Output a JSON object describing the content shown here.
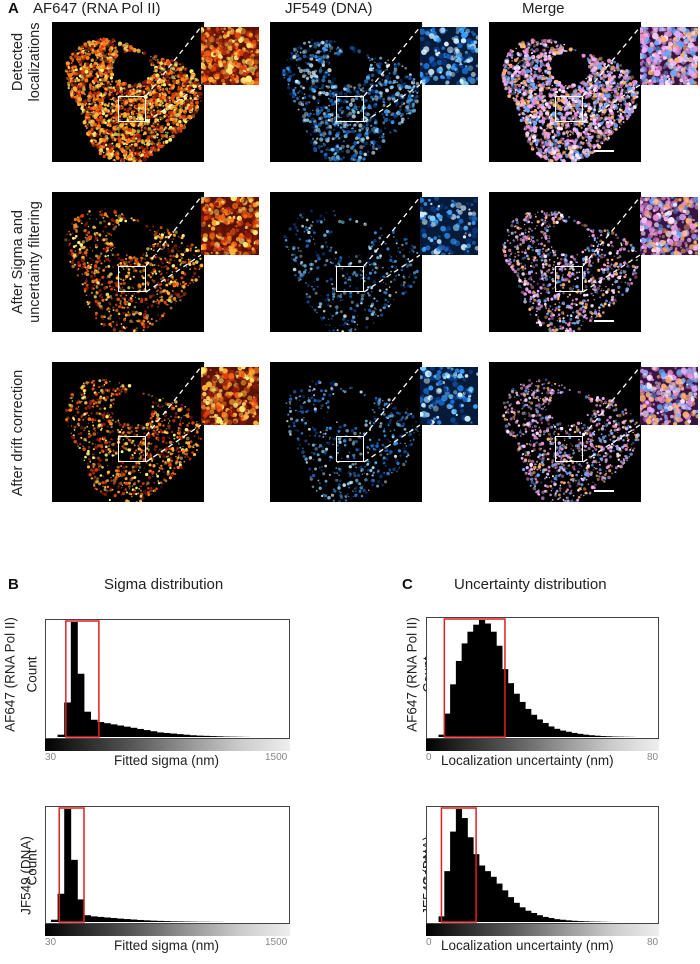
{
  "panels": {
    "a_letter": "A",
    "b_letter": "B",
    "c_letter": "C"
  },
  "columns": [
    "AF647 (RNA Pol II)",
    "JF549 (DNA)",
    "Merge"
  ],
  "rows": [
    {
      "label_line1": "Detected",
      "label_line2": "localizations"
    },
    {
      "label_line1": "After Sigma and",
      "label_line2": "uncertainty filtering"
    },
    {
      "label_line1": "After drift correction",
      "label_line2": ""
    }
  ],
  "colors": {
    "af647": "#ff8c1a",
    "jf549": "#3aa0ff",
    "merge": "#e7b3ff",
    "roi_box": "#ffffff",
    "selection": "#e02020"
  },
  "panel_b": {
    "title": "Sigma distribution",
    "x_label": "Fitted sigma (nm)",
    "x_min_label": "30",
    "x_max_label": "1500",
    "y_label": "Count",
    "row_labels": [
      "AF647 (RNA Pol II)",
      "JF549 (DNA)"
    ]
  },
  "panel_c": {
    "title": "Uncertainty distribution",
    "x_label": "Localization uncertainty (nm)",
    "x_min_label": "0",
    "x_max_label": "80",
    "y_label": "Count",
    "row_labels": [
      "AF647 (RNA Pol II)",
      "JF549 (DNA)"
    ]
  },
  "chart_data": [
    {
      "type": "bar",
      "title": "Sigma distribution",
      "series_label": "AF647 (RNA Pol II)",
      "xlabel": "Fitted sigma (nm)",
      "ylabel": "Count",
      "xlim": [
        30,
        1500
      ],
      "selection_range": [
        150,
        350
      ],
      "x": [
        40,
        80,
        120,
        160,
        200,
        240,
        280,
        320,
        360,
        400,
        440,
        480,
        520,
        560,
        600,
        640,
        680,
        720,
        760,
        800,
        840,
        880,
        920,
        960,
        1000,
        1040,
        1080,
        1120,
        1160,
        1200,
        1240,
        1280,
        1320,
        1360,
        1400,
        1440,
        1480
      ],
      "values": [
        0,
        0,
        0.02,
        0.3,
        1.0,
        0.55,
        0.22,
        0.15,
        0.13,
        0.12,
        0.11,
        0.1,
        0.09,
        0.08,
        0.07,
        0.06,
        0.05,
        0.04,
        0.035,
        0.03,
        0.025,
        0.02,
        0.015,
        0.012,
        0.01,
        0.008,
        0.006,
        0.004,
        0.003,
        0.002,
        0.001,
        0,
        0,
        0,
        0,
        0,
        0
      ]
    },
    {
      "type": "bar",
      "title": "Sigma distribution",
      "series_label": "JF549 (DNA)",
      "xlabel": "Fitted sigma (nm)",
      "ylabel": "Count",
      "xlim": [
        30,
        1500
      ],
      "selection_range": [
        110,
        260
      ],
      "x": [
        40,
        80,
        120,
        160,
        200,
        240,
        280,
        320,
        360,
        400,
        440,
        480,
        520,
        560,
        600,
        640,
        680,
        720,
        760,
        800,
        840,
        880,
        920,
        960,
        1000,
        1040,
        1080,
        1120,
        1160,
        1200,
        1240,
        1280,
        1320,
        1360,
        1400,
        1440,
        1480
      ],
      "values": [
        0,
        0.02,
        0.25,
        1.0,
        0.55,
        0.2,
        0.06,
        0.05,
        0.045,
        0.04,
        0.035,
        0.03,
        0.026,
        0.022,
        0.018,
        0.015,
        0.012,
        0.01,
        0.008,
        0.006,
        0.005,
        0.004,
        0.003,
        0.002,
        0.002,
        0.001,
        0.001,
        0,
        0,
        0,
        0,
        0,
        0,
        0,
        0,
        0,
        0
      ]
    },
    {
      "type": "bar",
      "title": "Uncertainty distribution",
      "series_label": "AF647 (RNA Pol II)",
      "xlabel": "Localization uncertainty (nm)",
      "ylabel": "Count",
      "xlim": [
        0,
        80
      ],
      "selection_range": [
        6,
        27
      ],
      "x": [
        1,
        3,
        5,
        7,
        9,
        11,
        13,
        15,
        17,
        19,
        21,
        23,
        25,
        27,
        29,
        31,
        33,
        35,
        37,
        39,
        41,
        43,
        45,
        47,
        49,
        51,
        53,
        55,
        57,
        59,
        61,
        63,
        65,
        67,
        69,
        71,
        73,
        75,
        77,
        79
      ],
      "values": [
        0,
        0,
        0.02,
        0.2,
        0.45,
        0.65,
        0.8,
        0.9,
        0.96,
        1.0,
        0.97,
        0.9,
        0.78,
        0.58,
        0.46,
        0.37,
        0.3,
        0.24,
        0.19,
        0.15,
        0.12,
        0.09,
        0.07,
        0.055,
        0.045,
        0.035,
        0.027,
        0.02,
        0.015,
        0.011,
        0.008,
        0.006,
        0.004,
        0.003,
        0.002,
        0.001,
        0,
        0,
        0,
        0
      ]
    },
    {
      "type": "bar",
      "title": "Uncertainty distribution",
      "series_label": "JF549 (DNA)",
      "xlabel": "Localization uncertainty (nm)",
      "ylabel": "Count",
      "xlim": [
        0,
        80
      ],
      "selection_range": [
        5,
        17
      ],
      "x": [
        1,
        3,
        5,
        7,
        9,
        11,
        13,
        15,
        17,
        19,
        21,
        23,
        25,
        27,
        29,
        31,
        33,
        35,
        37,
        39,
        41,
        43,
        45,
        47,
        49,
        51,
        53,
        55,
        57,
        59,
        61,
        63,
        65,
        67,
        69,
        71,
        73,
        75,
        77,
        79
      ],
      "values": [
        0,
        0,
        0.05,
        0.45,
        0.8,
        1.0,
        0.92,
        0.75,
        0.6,
        0.5,
        0.45,
        0.4,
        0.34,
        0.28,
        0.22,
        0.17,
        0.13,
        0.1,
        0.08,
        0.06,
        0.045,
        0.035,
        0.025,
        0.02,
        0.015,
        0.011,
        0.008,
        0.006,
        0.004,
        0.003,
        0.002,
        0.001,
        0,
        0,
        0,
        0,
        0,
        0,
        0,
        0
      ]
    }
  ]
}
